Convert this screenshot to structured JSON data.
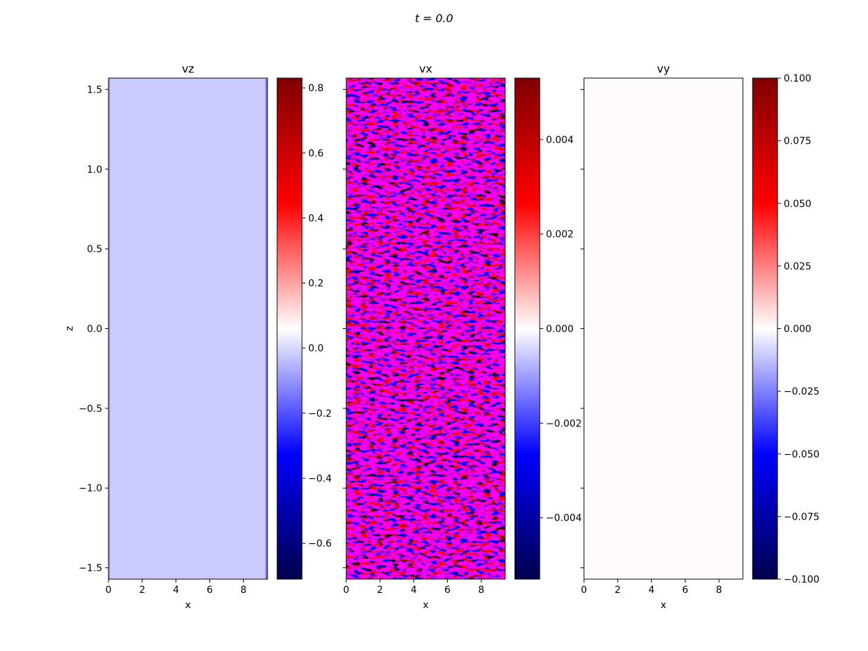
{
  "suptitle": "t = 0.0",
  "chart_data": [
    {
      "type": "heatmap",
      "title": "vz",
      "xlabel": "x",
      "ylabel": "z",
      "xlim": [
        0,
        9.42
      ],
      "ylim": [
        -1.571,
        1.571
      ],
      "x_ticks": [
        0,
        2,
        4,
        6,
        8
      ],
      "x_tick_labels": [
        "0",
        "2",
        "4",
        "6",
        "8"
      ],
      "y_ticks": [
        -1.5,
        -1.0,
        -0.5,
        0.0,
        0.5,
        1.0,
        1.5
      ],
      "y_tick_labels": [
        "−1.5",
        "−1.0",
        "−0.5",
        "0.0",
        "0.5",
        "1.0",
        "1.5"
      ],
      "colormap": "seismic",
      "field_description_value": -0.02,
      "colorbar": {
        "vmin": -0.71,
        "vmax": 0.83,
        "ticks": [
          -0.6,
          -0.4,
          -0.2,
          0.0,
          0.2,
          0.4,
          0.6,
          0.8
        ],
        "tick_labels": [
          "−0.6",
          "−0.4",
          "−0.2",
          "0.0",
          "0.2",
          "0.4",
          "0.6",
          "0.8"
        ]
      }
    },
    {
      "type": "heatmap",
      "title": "vx",
      "xlabel": "x",
      "ylabel": "",
      "xlim": [
        0,
        9.42
      ],
      "ylim": [
        -1.571,
        1.571
      ],
      "x_ticks": [
        0,
        2,
        4,
        6,
        8
      ],
      "x_tick_labels": [
        "0",
        "2",
        "4",
        "6",
        "8"
      ],
      "colormap": "seismic",
      "colorbar": {
        "vmin": -0.0053,
        "vmax": 0.0053,
        "ticks": [
          -0.004,
          -0.002,
          0.0,
          0.002,
          0.004
        ],
        "tick_labels": [
          "−0.004",
          "−0.002",
          "0.000",
          "0.002",
          "0.004"
        ]
      }
    },
    {
      "type": "heatmap",
      "title": "vy",
      "xlabel": "x",
      "ylabel": "",
      "xlim": [
        0,
        9.42
      ],
      "ylim": [
        -1.571,
        1.571
      ],
      "x_ticks": [
        0,
        2,
        4,
        6,
        8
      ],
      "x_tick_labels": [
        "0",
        "2",
        "4",
        "6",
        "8"
      ],
      "colormap": "seismic",
      "colorbar": {
        "vmin": -0.1,
        "vmax": 0.1,
        "ticks": [
          -0.1,
          -0.075,
          -0.05,
          -0.025,
          0.0,
          0.025,
          0.05,
          0.075,
          0.1
        ],
        "tick_labels": [
          "−0.100",
          "−0.075",
          "−0.050",
          "−0.025",
          "0.000",
          "0.025",
          "0.050",
          "0.075",
          "0.100"
        ]
      }
    }
  ],
  "colors": {
    "seismic_low": "#00004c",
    "seismic_blue": "#0000ff",
    "seismic_mid": "#ffffff",
    "seismic_red": "#ff0000",
    "seismic_high": "#7f0000"
  }
}
